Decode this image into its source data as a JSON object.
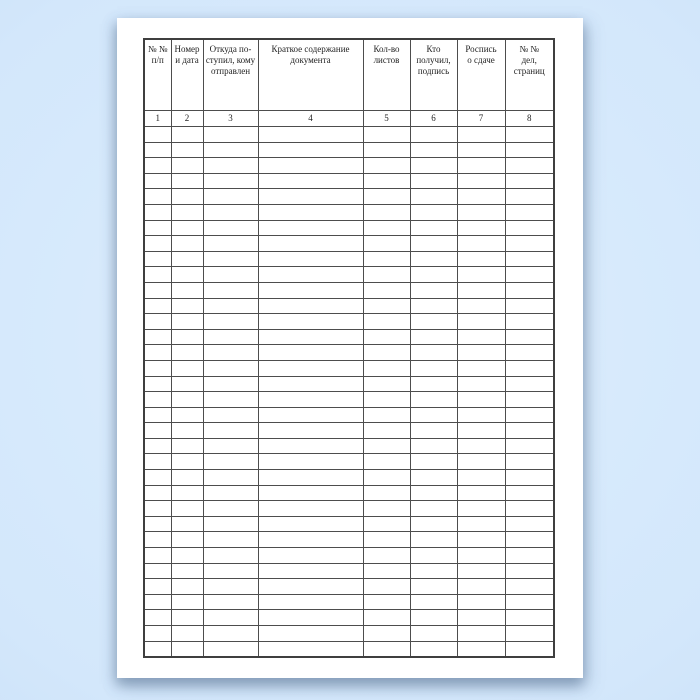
{
  "page": {
    "background_color": "#d5e9fc",
    "background_center_color": "#e1eefc",
    "background_edge_color": "#cbe1f7",
    "paper_color": "#ffffff",
    "grid_color": "#4d4d4d",
    "text_color": "#1f1f1f"
  },
  "journal_table": {
    "columns": [
      {
        "header": "№ №\nп/п",
        "number": "1"
      },
      {
        "header": "Номер\nи дата",
        "number": "2"
      },
      {
        "header": "Откуда по-\nступил, кому\nотправлен",
        "number": "3"
      },
      {
        "header": "Краткое содержание\nдокумента",
        "number": "4"
      },
      {
        "header": "Кол-во\nлистов",
        "number": "5"
      },
      {
        "header": "Кто\nполучил,\nподпись",
        "number": "6"
      },
      {
        "header": "Роспись\nо сдаче",
        "number": "7"
      },
      {
        "header": "№ №\nдел,\nстраниц",
        "number": "8"
      }
    ],
    "empty_row_count": 34,
    "empty_cell_value": ""
  }
}
